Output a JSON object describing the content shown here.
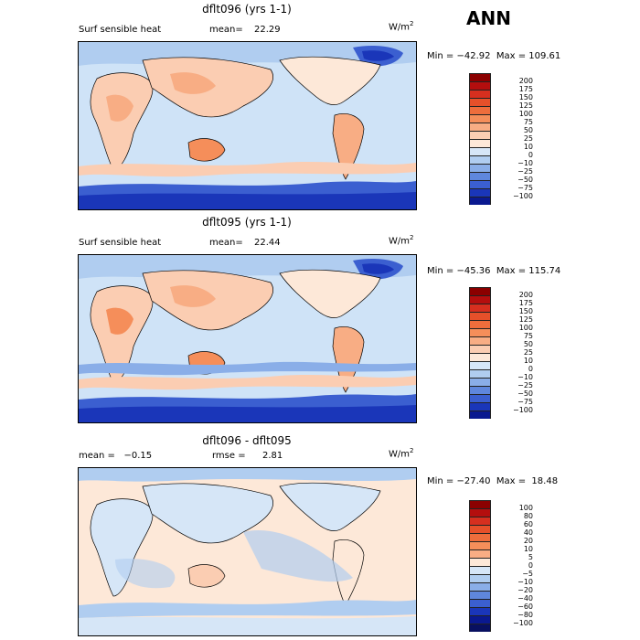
{
  "season_label": "ANN",
  "panels": [
    {
      "title": "dflt096 (yrs 1-1)",
      "left_label": "Surf sensible heat",
      "stat_label": "mean=",
      "stat_value": "22.29",
      "units_base": "W/m",
      "units_exp": "2",
      "minmax": "Min = −42.92  Max = 109.61",
      "cbar_labels": [
        "200",
        "175",
        "150",
        "125",
        "100",
        "75",
        "50",
        "25",
        "10",
        "0",
        "−10",
        "−25",
        "−50",
        "−75",
        "−100"
      ],
      "cbar_colors": [
        "#8b0000",
        "#b40e0e",
        "#d62f1f",
        "#e6502a",
        "#ee6d3c",
        "#f58e5a",
        "#f8ad84",
        "#fbcdb2",
        "#fde8d8",
        "#d6e6f7",
        "#b0cdf0",
        "#8aaee8",
        "#5f87dd",
        "#3b5fd0",
        "#1a36b9",
        "#0a1990"
      ]
    },
    {
      "title": "dflt095 (yrs 1-1)",
      "left_label": "Surf sensible heat",
      "stat_label": "mean=",
      "stat_value": "22.44",
      "units_base": "W/m",
      "units_exp": "2",
      "minmax": "Min = −45.36  Max = 115.74",
      "cbar_labels": [
        "200",
        "175",
        "150",
        "125",
        "100",
        "75",
        "50",
        "25",
        "10",
        "0",
        "−10",
        "−25",
        "−50",
        "−75",
        "−100"
      ],
      "cbar_colors": [
        "#8b0000",
        "#b40e0e",
        "#d62f1f",
        "#e6502a",
        "#ee6d3c",
        "#f58e5a",
        "#f8ad84",
        "#fbcdb2",
        "#fde8d8",
        "#d6e6f7",
        "#b0cdf0",
        "#8aaee8",
        "#5f87dd",
        "#3b5fd0",
        "#1a36b9",
        "#0a1990"
      ]
    },
    {
      "title": "dflt096 - dflt095",
      "left_label": "mean =   −0.15",
      "stat_label": "rmse =",
      "stat_value": "2.81",
      "units_base": "W/m",
      "units_exp": "2",
      "minmax": "Min = −27.40  Max =  18.48",
      "cbar_labels": [
        "100",
        "80",
        "60",
        "40",
        "20",
        "10",
        "5",
        "0",
        "−5",
        "−10",
        "−20",
        "−40",
        "−60",
        "−80",
        "−100"
      ],
      "cbar_colors": [
        "#8b0000",
        "#b40e0e",
        "#d62f1f",
        "#e6502a",
        "#ee6d3c",
        "#f58e5a",
        "#f8ad84",
        "#fde8d8",
        "#d6e6f7",
        "#b0cdf0",
        "#8aaee8",
        "#5f87dd",
        "#3b5fd0",
        "#1a36b9",
        "#0a1990",
        "#081060"
      ]
    }
  ]
}
